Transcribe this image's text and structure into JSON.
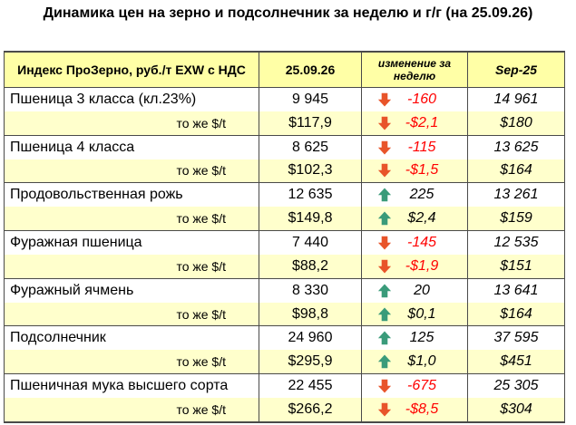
{
  "title": "Динамика цен на зерно  и подсолнечник за неделю и г/г (на 25.09.26)",
  "header": {
    "label": "Индекс ПроЗерно, руб./т EXW с НДС",
    "current": "25.09.26",
    "change": "изменение за неделю",
    "previous": "Sep-25"
  },
  "colors": {
    "header_bg": "#ffffa6",
    "sub_bg": "#ffffcc",
    "down": "#e8542a",
    "up": "#3a9b7a",
    "neg_text": "#ff0000"
  },
  "rows": [
    {
      "label": "Пшеница 3 класса (кл.23%)",
      "value": "9 945",
      "change": "-160",
      "dir": "down",
      "prev": "14 961",
      "sub": false
    },
    {
      "label": "то же $/t",
      "value": "$117,9",
      "change": "-$2,1",
      "dir": "down",
      "prev": "$180",
      "sub": true
    },
    {
      "label": "Пшеница 4 класса",
      "value": "8 625",
      "change": "-115",
      "dir": "down",
      "prev": "13 625",
      "sub": false
    },
    {
      "label": "то же $/t",
      "value": "$102,3",
      "change": "-$1,5",
      "dir": "down",
      "prev": "$164",
      "sub": true
    },
    {
      "label": "Продовольственная рожь",
      "value": "12 635",
      "change": "225",
      "dir": "up",
      "prev": "13 261",
      "sub": false
    },
    {
      "label": "то же $/t",
      "value": "$149,8",
      "change": "$2,4",
      "dir": "up",
      "prev": "$159",
      "sub": true
    },
    {
      "label": "Фуражная пшеница",
      "value": "7 440",
      "change": "-145",
      "dir": "down",
      "prev": "12 535",
      "sub": false
    },
    {
      "label": "то же $/t",
      "value": "$88,2",
      "change": "-$1,9",
      "dir": "down",
      "prev": "$151",
      "sub": true
    },
    {
      "label": "Фуражный ячмень",
      "value": "8 330",
      "change": "20",
      "dir": "up",
      "prev": "13 641",
      "sub": false
    },
    {
      "label": "то же $/t",
      "value": "$98,8",
      "change": "$0,1",
      "dir": "up",
      "prev": "$164",
      "sub": true
    },
    {
      "label": "Подсолнечник",
      "value": "24 960",
      "change": "125",
      "dir": "up",
      "prev": "37 595",
      "sub": false
    },
    {
      "label": "то же $/t",
      "value": "$295,9",
      "change": "$1,0",
      "dir": "up",
      "prev": "$451",
      "sub": true
    },
    {
      "label": "Пшеничная мука высшего сорта",
      "value": "22 455",
      "change": "-675",
      "dir": "down",
      "prev": "25 305",
      "sub": false
    },
    {
      "label": "то же $/t",
      "value": "$266,2",
      "change": "-$8,5",
      "dir": "down",
      "prev": "$304",
      "sub": true
    }
  ]
}
